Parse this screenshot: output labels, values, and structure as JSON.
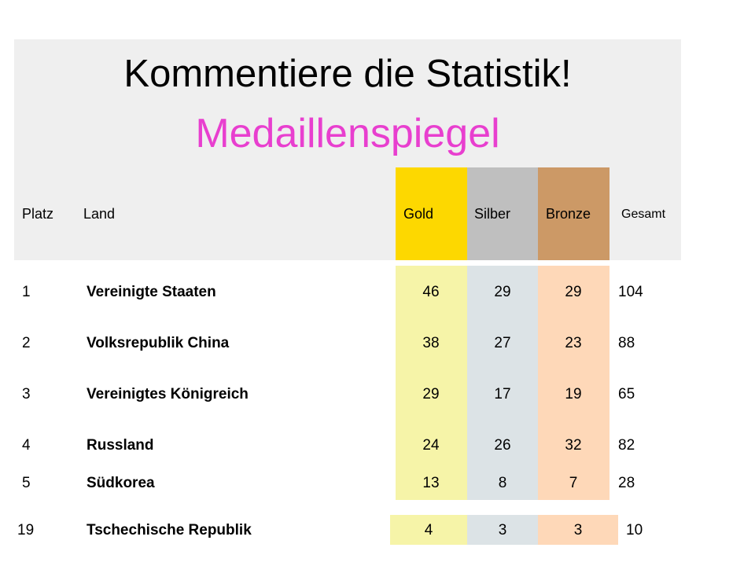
{
  "title": "Kommentiere die Statistik!",
  "subtitle": "Medaillenspiegel",
  "colors": {
    "gold_header": "#fdd800",
    "silver_header": "#bfbfbf",
    "bronze_header": "#cc9966",
    "gold_cell": "#f6f4a8",
    "silver_cell": "#dce3e6",
    "bronze_cell": "#fed8b8",
    "subtitle": "#e83fcf"
  },
  "headers": {
    "platz": "Platz",
    "land": "Land",
    "gold": "Gold",
    "silber": "Silber",
    "bronze": "Bronze",
    "gesamt": "Gesamt"
  },
  "rows": [
    {
      "platz": "1",
      "land": "Vereinigte Staaten",
      "gold": "46",
      "silber": "29",
      "bronze": "29",
      "gesamt": "104"
    },
    {
      "platz": "2",
      "land": "Volksrepublik China",
      "gold": "38",
      "silber": "27",
      "bronze": "23",
      "gesamt": "88"
    },
    {
      "platz": "3",
      "land": "Vereinigtes Königreich",
      "gold": "29",
      "silber": "17",
      "bronze": "19",
      "gesamt": "65"
    },
    {
      "platz": "4",
      "land": "Russland",
      "gold": "24",
      "silber": "26",
      "bronze": "32",
      "gesamt": "82"
    },
    {
      "platz": "5",
      "land": "Südkorea",
      "gold": "13",
      "silber": "8",
      "bronze": "7",
      "gesamt": "28"
    },
    {
      "platz": "19",
      "land": "Tschechische Republik",
      "gold": "4",
      "silber": "3",
      "bronze": "3",
      "gesamt": "10"
    }
  ]
}
